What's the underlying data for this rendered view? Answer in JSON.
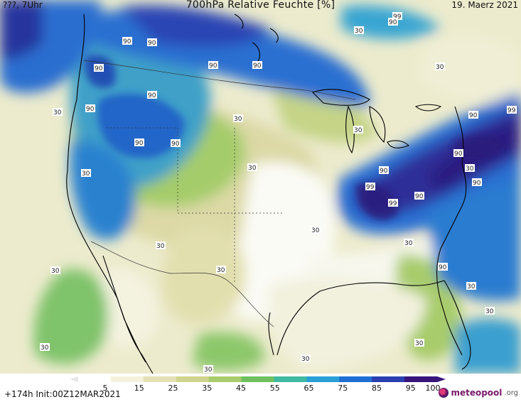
{
  "header": {
    "left": "???, 7Uhr",
    "title": "700hPa Relative Feuchte [%]",
    "date": "19. Maerz 2021"
  },
  "footer": {
    "run": "+174h Init:00Z12MAR2021",
    "logo_main": "meteopool",
    "logo_suffix": ".org"
  },
  "legend": {
    "ticks": [
      "5",
      "15",
      "25",
      "35",
      "45",
      "55",
      "65",
      "75",
      "85",
      "95",
      "100"
    ],
    "colors": [
      "#ffffff",
      "#f4f2dc",
      "#e4e0b4",
      "#cfd48e",
      "#a8cc6c",
      "#70c060",
      "#3fb9a0",
      "#29a0d6",
      "#1e6fd3",
      "#2a3fb0",
      "#38157a"
    ]
  },
  "contour_labels": [
    "30",
    "90",
    "99"
  ],
  "colors": {
    "dry": "#fbfbf5",
    "ocean_blue": "#1b4fc0",
    "deep_purple": "#2b1a86",
    "teal": "#4fb6a6"
  }
}
